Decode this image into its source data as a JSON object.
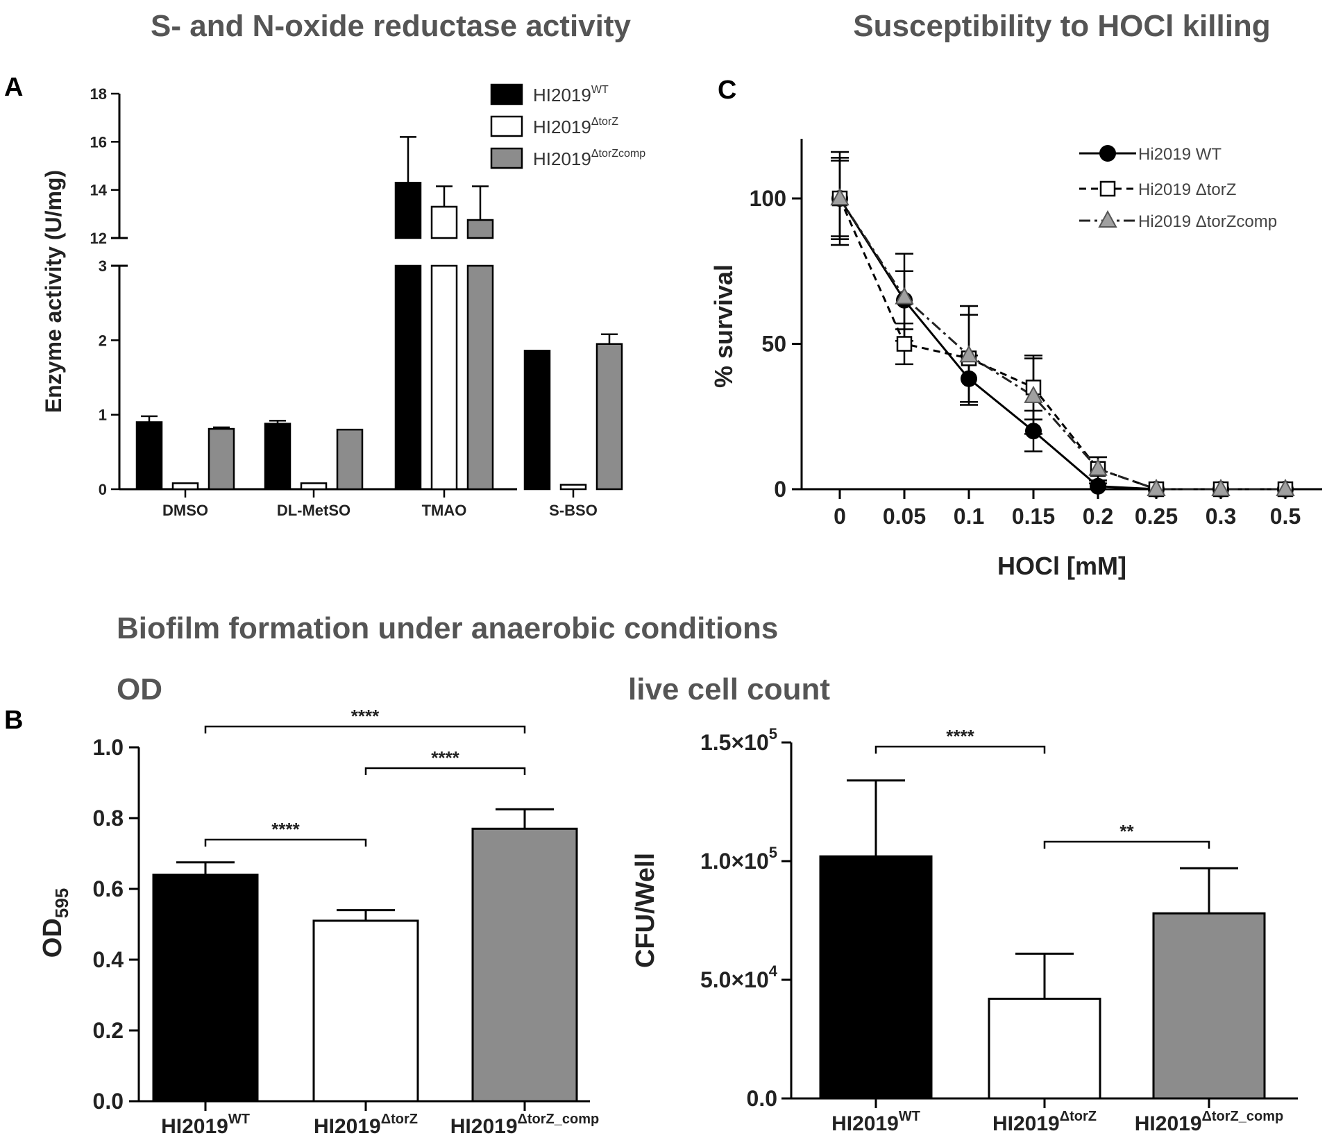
{
  "titles": {
    "panel_a": "S- and N-oxide reductase activity",
    "panel_c": "Susceptibility to HOCl killing",
    "panel_b": "Biofilm formation under anaerobic conditions"
  },
  "letters": {
    "a": "A",
    "b": "B",
    "c": "C"
  },
  "colors": {
    "wt": "#000000",
    "dtorz": "#ffffff",
    "comp": "#8c8c8c",
    "comp_line": "#a0a0a0",
    "axis": "#000000"
  },
  "chart_data": [
    {
      "id": "A",
      "type": "bar",
      "title": "S- and N-oxide reductase activity",
      "ylabel": "Enzyme activity (U/mg)",
      "xlabel": "",
      "y_break": {
        "lower": [
          0,
          3
        ],
        "upper": [
          12,
          18
        ]
      },
      "yticks_lower": [
        "0",
        "1",
        "2",
        "3"
      ],
      "yticks_upper": [
        "12",
        "14",
        "16",
        "18"
      ],
      "categories": [
        "DMSO",
        "DL-MetSO",
        "TMAO",
        "S-BSO"
      ],
      "legend": [
        {
          "base": "HI2019",
          "sup": "WT"
        },
        {
          "base": "HI2019",
          "sup": "ΔtorZ"
        },
        {
          "base": "HI2019",
          "sup": "ΔtorZcomp"
        }
      ],
      "series": [
        {
          "name": "HI2019WT",
          "values": [
            0.9,
            0.88,
            14.3,
            1.86
          ],
          "errors": [
            0.08,
            0.04,
            1.9,
            0.0
          ]
        },
        {
          "name": "HI2019ΔtorZ",
          "values": [
            0.08,
            0.08,
            13.3,
            0.06
          ],
          "errors": [
            0.0,
            0.0,
            0.85,
            0.0
          ]
        },
        {
          "name": "HI2019ΔtorZcomp",
          "values": [
            0.81,
            0.8,
            12.75,
            1.95
          ],
          "errors": [
            0.02,
            0.0,
            1.4,
            0.13
          ]
        }
      ]
    },
    {
      "id": "C",
      "type": "line",
      "title": "Susceptibility to HOCl killing",
      "xlabel": "HOCl [mM]",
      "ylabel": "% survival",
      "x": [
        "0",
        "0.05",
        "0.1",
        "0.15",
        "0.2",
        "0.25",
        "0.3",
        "0.5"
      ],
      "yticks": [
        "0",
        "50",
        "100"
      ],
      "ylim": [
        0,
        120
      ],
      "legend": [
        "Hi2019 WT",
        "Hi2019 ΔtorZ",
        "Hi2019 ΔtorZcomp"
      ],
      "series": [
        {
          "name": "Hi2019 WT",
          "values": [
            100,
            65,
            38,
            20,
            1,
            0,
            0,
            0
          ],
          "errors": [
            13,
            10,
            8,
            7,
            1,
            0,
            0,
            0
          ]
        },
        {
          "name": "Hi2019 ΔtorZ",
          "values": [
            100,
            50,
            45,
            35,
            7,
            0,
            0,
            0
          ],
          "errors": [
            16,
            7,
            15,
            11,
            4,
            0,
            0,
            0
          ]
        },
        {
          "name": "Hi2019 ΔtorZcomp",
          "values": [
            100,
            66,
            46,
            32,
            7,
            0,
            0,
            0
          ],
          "errors": [
            14,
            15,
            17,
            13,
            4,
            0,
            0,
            0
          ]
        }
      ]
    },
    {
      "id": "B1",
      "type": "bar",
      "title": "OD",
      "ylabel": {
        "base": "OD",
        "sub": "595"
      },
      "ylim": [
        0,
        1.0
      ],
      "yticks": [
        "0.0",
        "0.2",
        "0.4",
        "0.6",
        "0.8",
        "1.0"
      ],
      "categories": [
        {
          "base": "HI2019",
          "sup": "WT"
        },
        {
          "base": "HI2019",
          "sup": "ΔtorZ"
        },
        {
          "base": "HI2019",
          "sup": "ΔtorZ_comp"
        }
      ],
      "values": [
        0.64,
        0.51,
        0.77
      ],
      "errors": [
        0.035,
        0.03,
        0.055
      ],
      "significance": [
        {
          "from": 0,
          "to": 2,
          "label": "****"
        },
        {
          "from": 1,
          "to": 2,
          "label": "****"
        },
        {
          "from": 0,
          "to": 1,
          "label": "****"
        }
      ]
    },
    {
      "id": "B2",
      "type": "bar",
      "title": "live cell count",
      "ylabel": "CFU/Well",
      "ylim": [
        0,
        150000
      ],
      "yticks": [
        {
          "base": "0.0",
          "sup": ""
        },
        {
          "base": "5.0×10",
          "sup": "4"
        },
        {
          "base": "1.0×10",
          "sup": "5"
        },
        {
          "base": "1.5×10",
          "sup": "5"
        }
      ],
      "categories": [
        {
          "base": "HI2019",
          "sup": "WT"
        },
        {
          "base": "HI2019",
          "sup": "ΔtorZ"
        },
        {
          "base": "HI2019",
          "sup": "ΔtorZ_comp"
        }
      ],
      "values": [
        102000,
        42000,
        78000
      ],
      "errors": [
        32000,
        19000,
        19000
      ],
      "significance": [
        {
          "from": 0,
          "to": 1,
          "label": "****"
        },
        {
          "from": 1,
          "to": 2,
          "label": "**"
        }
      ]
    }
  ]
}
